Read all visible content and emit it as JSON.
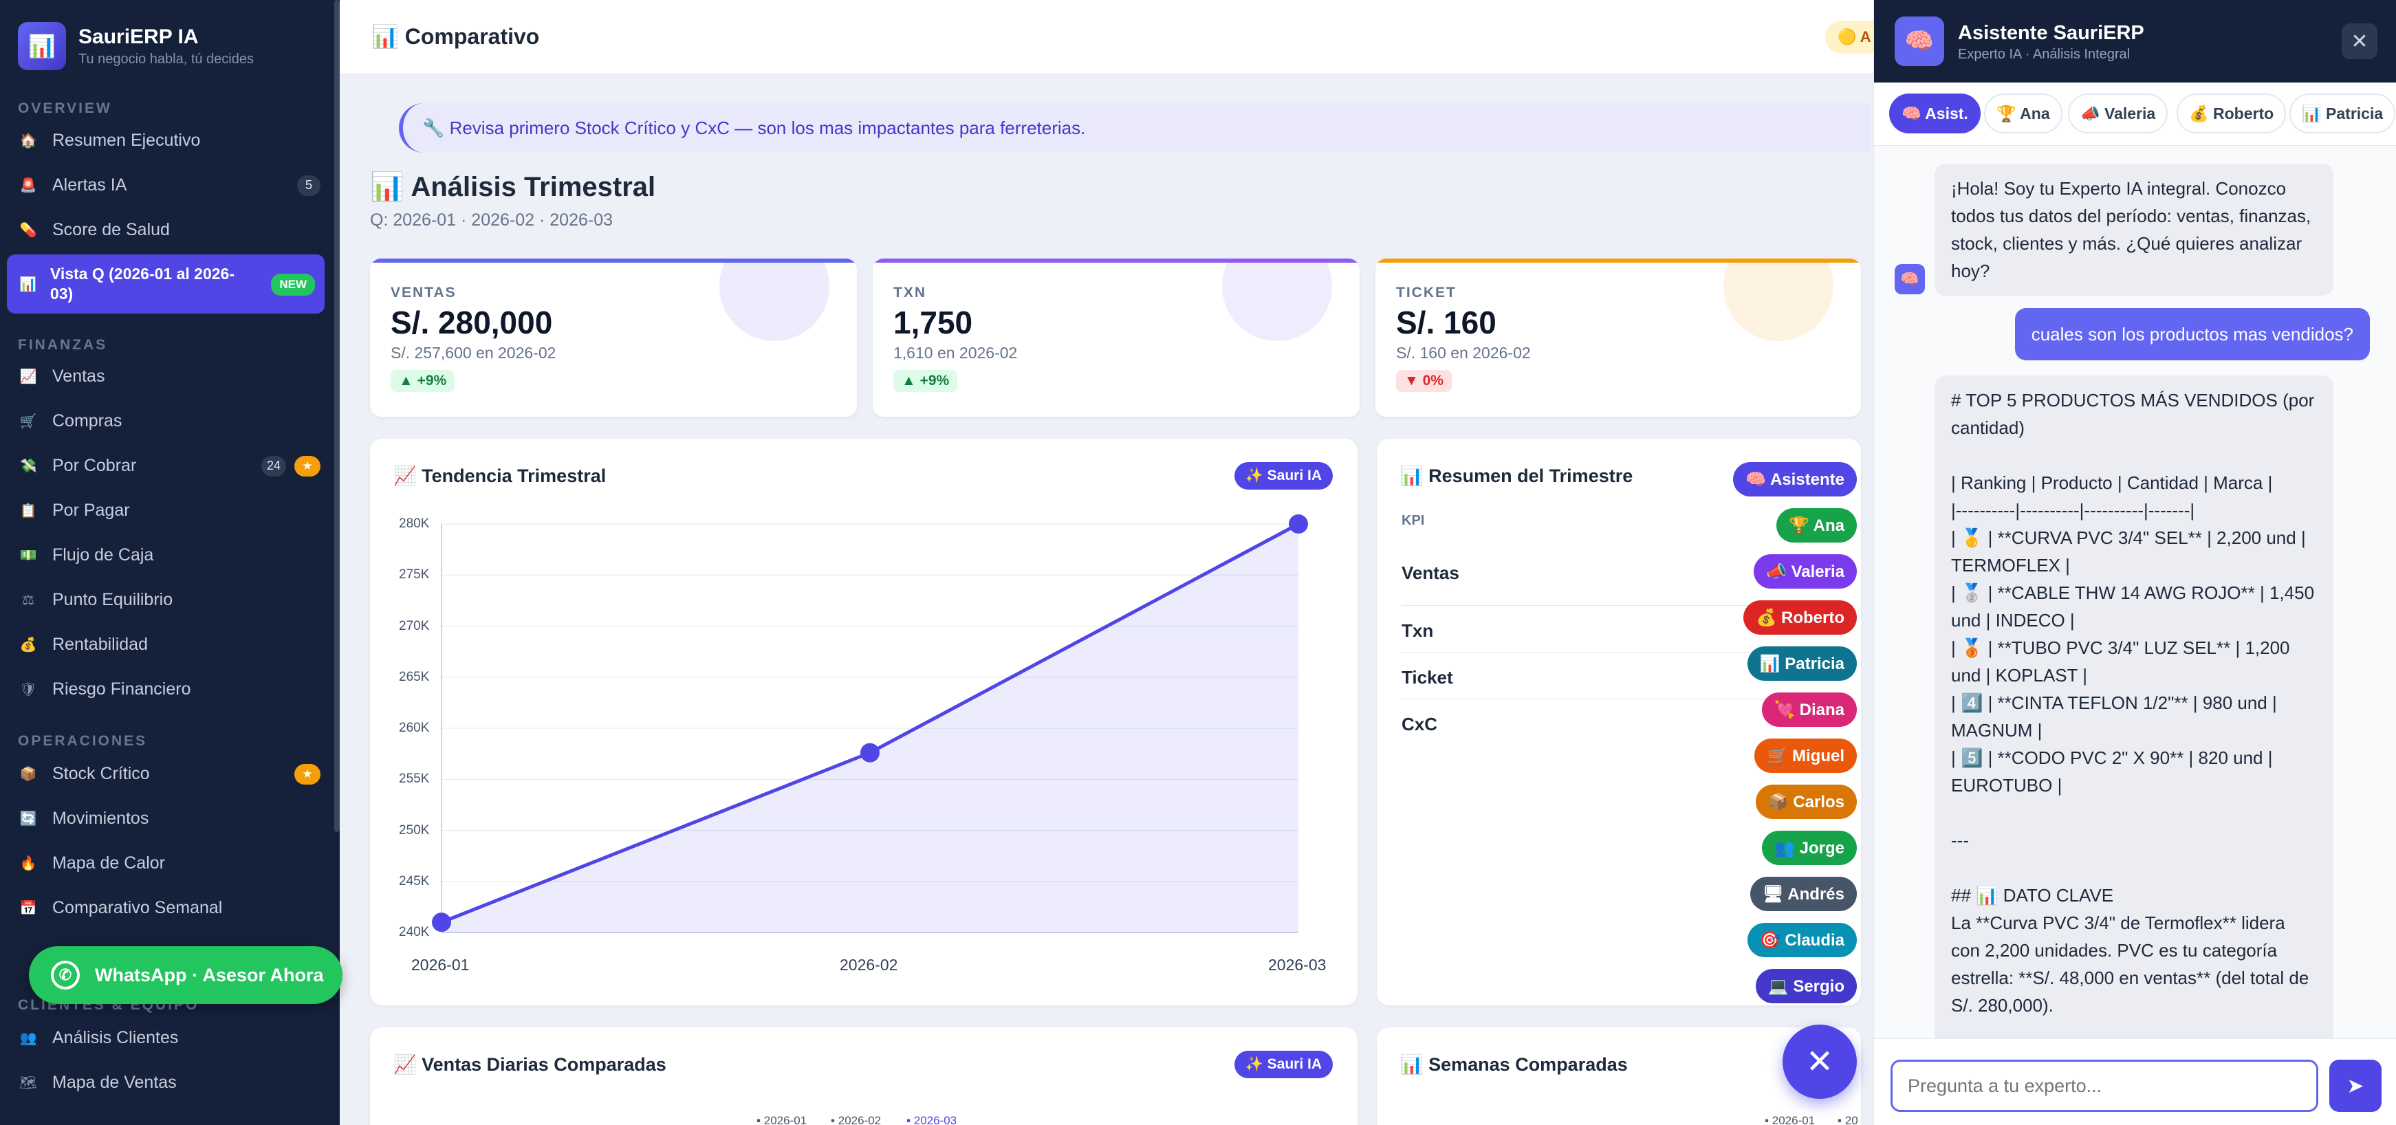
{
  "sidebar": {
    "brand": {
      "name": "SauriERP IA",
      "tagline": "Tu negocio habla, tú decides",
      "logo_icon": "chart-icon"
    },
    "sections": {
      "overview": "OVERVIEW",
      "finanzas": "FINANZAS",
      "operaciones": "OPERACIONES",
      "clientes": "CLIENTES & EQUIPO"
    },
    "overview": [
      {
        "label": "Resumen Ejecutivo",
        "icon": "🏠"
      },
      {
        "label": "Alertas IA",
        "icon": "🚨",
        "badge": "5"
      },
      {
        "label": "Score de Salud",
        "icon": "💊"
      }
    ],
    "active": {
      "label": "Vista Q (2026-01 al 2026-03)",
      "icon": "📊",
      "badge": "NEW"
    },
    "finanzas": [
      {
        "label": "Ventas",
        "icon": "📈"
      },
      {
        "label": "Compras",
        "icon": "🛒"
      },
      {
        "label": "Por Cobrar",
        "icon": "💸",
        "badge": "24",
        "star": "★"
      },
      {
        "label": "Por Pagar",
        "icon": "📋"
      },
      {
        "label": "Flujo de Caja",
        "icon": "💵"
      },
      {
        "label": "Punto Equilibrio",
        "icon": "⚖"
      },
      {
        "label": "Rentabilidad",
        "icon": "💰"
      },
      {
        "label": "Riesgo Financiero",
        "icon": "🛡"
      }
    ],
    "operaciones": [
      {
        "label": "Stock Crítico",
        "icon": "📦",
        "star": "★"
      },
      {
        "label": "Movimientos",
        "icon": "🔄"
      },
      {
        "label": "Mapa de Calor",
        "icon": "🔥"
      },
      {
        "label": "Comparativo Semanal",
        "icon": "📅"
      }
    ],
    "clientes": [
      {
        "label": "Análisis Clientes",
        "icon": "👥"
      },
      {
        "label": "Mapa de Ventas",
        "icon": "🗺"
      }
    ],
    "whatsapp": "WhatsApp · Asesor Ahora"
  },
  "topbar": {
    "title": "📊 Comparativo",
    "pill": "🟡 A"
  },
  "tip": "🔧 Revisa primero Stock Crítico y CxC — son los mas impactantes para ferreterias.",
  "page": {
    "title": "📊 Análisis Trimestral",
    "subtitle": "Q: 2026-01 · 2026-02 · 2026-03"
  },
  "kpis": [
    {
      "label": "VENTAS",
      "value": "S/. 280,000",
      "prev": "S/. 257,600 en 2026-02",
      "change": "▲ +9%",
      "color": "#6366f1",
      "positive": true
    },
    {
      "label": "TXN",
      "value": "1,750",
      "prev": "1,610 en 2026-02",
      "change": "▲ +9%",
      "color": "#8b5cf6",
      "positive": true
    },
    {
      "label": "TICKET",
      "value": "S/. 160",
      "prev": "S/. 160 en 2026-02",
      "change": "▼ 0%",
      "color": "#f59e0b",
      "positive": false
    }
  ],
  "trend_card": {
    "title": "📈 Tendencia Trimestral",
    "ai_button": "✨ Sauri IA"
  },
  "chart_data": {
    "type": "area",
    "title": "📈 Tendencia Trimestral",
    "categories": [
      "2026-01",
      "2026-02",
      "2026-03"
    ],
    "series": [
      {
        "values": [
          241000,
          257600,
          280000
        ],
        "color": "#4f46e5"
      }
    ],
    "yticks": [
      "240K",
      "245K",
      "250K",
      "255K",
      "260K",
      "265K",
      "270K",
      "275K",
      "280K"
    ],
    "ylim": [
      240000,
      280000
    ],
    "grid": true
  },
  "summary": {
    "title": "📊 Resumen del Trimestre",
    "kpi_header": "KPI",
    "rows": [
      "Ventas",
      "Txn",
      "Ticket",
      "CxC"
    ]
  },
  "agents": [
    {
      "label": "🧠 Asistente",
      "color": "#4f46e5"
    },
    {
      "label": "🏆 Ana",
      "color": "#16a34a"
    },
    {
      "label": "📣 Valeria",
      "color": "#7c3aed"
    },
    {
      "label": "💰 Roberto",
      "color": "#dc2626"
    },
    {
      "label": "📊 Patricia",
      "color": "#0e7490"
    },
    {
      "label": "💘 Diana",
      "color": "#db2777"
    },
    {
      "label": "🛒 Miguel",
      "color": "#ea580c"
    },
    {
      "label": "📦 Carlos",
      "color": "#d97706"
    },
    {
      "label": "👥 Jorge",
      "color": "#16a34a"
    },
    {
      "label": "🖥 Andrés",
      "color": "#475569"
    },
    {
      "label": "🎯 Claudia",
      "color": "#0891b2"
    },
    {
      "label": "💻 Sergio",
      "color": "#4338ca"
    }
  ],
  "daily_card": {
    "title": "📈 Ventas Diarias Comparadas",
    "ai_button": "✨ Sauri IA",
    "legend": [
      "2026-01",
      "2026-02",
      "2026-03"
    ]
  },
  "weeks_card": {
    "title": "📊 Semanas Comparadas",
    "legend": [
      "2026-01",
      "20"
    ]
  },
  "fab_icon": "✕",
  "panel": {
    "title": "Asistente SauriERP",
    "subtitle": "Experto IA · Análisis Integral",
    "close": "✕",
    "tabs": [
      {
        "label": "🧠 Asist.",
        "active": true
      },
      {
        "label": "🏆 Ana"
      },
      {
        "label": "📣 Valeria"
      },
      {
        "label": "💰 Roberto"
      },
      {
        "label": "📊 Patricia"
      }
    ],
    "messages": [
      {
        "role": "bot",
        "text": "¡Hola! Soy tu Experto IA integral. Conozco todos tus datos del período: ventas, finanzas, stock, clientes y más. ¿Qué quieres analizar hoy?"
      },
      {
        "role": "user",
        "text": "cuales son los productos mas vendidos?"
      },
      {
        "role": "bot",
        "lines": [
          "# TOP 5 PRODUCTOS MÁS VENDIDOS (por cantidad)",
          "",
          "| Ranking | Producto | Cantidad | Marca |",
          "|----------|----------|----------|-------|",
          "| 🥇 | **CURVA PVC 3/4\" SEL** | 2,200 und | TERMOFLEX |",
          "| 🥈 | **CABLE THW 14 AWG ROJO** | 1,450 und | INDECO |",
          "| 🥉 | **TUBO PVC 3/4\" LUZ SEL** | 1,200 und | KOPLAST |",
          "| 4️⃣ | **CINTA TEFLON 1/2\"** | 980 und | MAGNUM |",
          "| 5️⃣ | **CODO PVC 2\" X 90** | 820 und | EUROTUBO |",
          "",
          "---",
          "",
          "## 📊 DATO CLAVE",
          "La **Curva PVC 3/4\" de Termoflex** lidera con 2,200 unidades. PVC es tu categoría estrella: **S/. 48,000 en ventas** (del total de S/. 280,000)."
        ]
      }
    ],
    "input_placeholder": "Pregunta a tu experto...",
    "send_icon": "➤"
  }
}
